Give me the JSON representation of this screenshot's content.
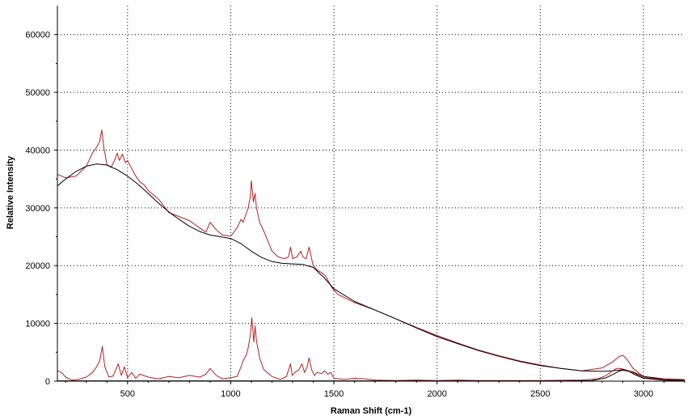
{
  "chart_data": {
    "type": "line",
    "title": "",
    "xlabel": "Raman Shift (cm-1)",
    "ylabel": "Relative Intensity",
    "xlim": [
      160,
      3200
    ],
    "ylim": [
      0,
      65000
    ],
    "x_ticks": [
      500,
      1000,
      1500,
      2000,
      2500,
      3000
    ],
    "y_ticks": [
      0,
      10000,
      20000,
      30000,
      40000,
      50000,
      60000
    ],
    "x_tick_labels": [
      "500",
      "1000",
      "1500",
      "2000",
      "2500",
      "3000"
    ],
    "y_tick_labels": [
      "0",
      "10000",
      "20000",
      "30000",
      "40000",
      "50000",
      "60000"
    ],
    "grid": true,
    "grid_style": "dotted",
    "series": [
      {
        "color": "#b22222",
        "x": [
          160,
          200,
          250,
          300,
          330,
          350,
          365,
          375,
          385,
          400,
          420,
          440,
          450,
          460,
          475,
          490,
          500,
          520,
          540,
          560,
          580,
          600,
          650,
          700,
          750,
          800,
          850,
          880,
          900,
          930,
          960,
          1000,
          1030,
          1050,
          1060,
          1075,
          1085,
          1095,
          1100,
          1110,
          1118,
          1125,
          1140,
          1160,
          1200,
          1230,
          1260,
          1280,
          1290,
          1300,
          1320,
          1340,
          1350,
          1365,
          1380,
          1390,
          1400,
          1420,
          1440,
          1460,
          1490,
          1520,
          1600,
          1700,
          1800,
          1900,
          2000,
          2100,
          2200,
          2300,
          2400,
          2500,
          2600,
          2700,
          2800,
          2850,
          2880,
          2900,
          2920,
          2950,
          3000,
          3100,
          3200
        ],
        "y": [
          35800,
          35200,
          35500,
          37200,
          39500,
          40500,
          41500,
          43500,
          40500,
          37500,
          37000,
          38500,
          39500,
          38200,
          39300,
          37800,
          38200,
          36800,
          35500,
          34500,
          34000,
          33000,
          31500,
          29200,
          28500,
          27800,
          26500,
          25800,
          27500,
          26200,
          25300,
          25100,
          26500,
          28000,
          27500,
          29000,
          30000,
          32000,
          34700,
          31000,
          32500,
          30000,
          27500,
          26000,
          22500,
          21500,
          21200,
          21500,
          23200,
          21200,
          21500,
          22500,
          21500,
          21200,
          23200,
          21500,
          20000,
          19200,
          18800,
          18200,
          16200,
          15000,
          13600,
          12300,
          10800,
          9300,
          7900,
          6600,
          5400,
          4400,
          3500,
          2800,
          2200,
          1800,
          2300,
          3300,
          4200,
          4500,
          3800,
          2200,
          800,
          400,
          300
        ]
      },
      {
        "color": "#000000",
        "x": [
          160,
          200,
          250,
          300,
          350,
          400,
          450,
          500,
          550,
          600,
          650,
          700,
          750,
          800,
          850,
          900,
          950,
          1000,
          1050,
          1100,
          1150,
          1200,
          1250,
          1300,
          1350,
          1400,
          1450,
          1500,
          1600,
          1700,
          1800,
          1900,
          2000,
          2100,
          2200,
          2300,
          2400,
          2500,
          2600,
          2700,
          2800,
          2850,
          2900,
          2950,
          3000,
          3100,
          3200
        ],
        "y": [
          33800,
          35000,
          36300,
          37200,
          37600,
          37400,
          36600,
          35500,
          34100,
          32500,
          30800,
          29300,
          28000,
          26800,
          25900,
          25300,
          25000,
          24700,
          23800,
          22500,
          21400,
          20700,
          20400,
          20300,
          20200,
          19700,
          18000,
          16000,
          13800,
          12300,
          10800,
          9200,
          7700,
          6500,
          5300,
          4300,
          3400,
          2700,
          2200,
          1800,
          1700,
          1800,
          2000,
          1600,
          800,
          350,
          200
        ]
      },
      {
        "color": "#b22222",
        "x": [
          160,
          180,
          200,
          230,
          260,
          300,
          330,
          350,
          365,
          378,
          390,
          410,
          430,
          445,
          455,
          470,
          485,
          500,
          520,
          540,
          560,
          600,
          650,
          700,
          750,
          800,
          850,
          880,
          900,
          930,
          960,
          1000,
          1030,
          1050,
          1060,
          1075,
          1085,
          1095,
          1102,
          1112,
          1118,
          1125,
          1140,
          1160,
          1200,
          1240,
          1270,
          1290,
          1298,
          1310,
          1330,
          1345,
          1358,
          1370,
          1380,
          1392,
          1405,
          1420,
          1440,
          1455,
          1470,
          1485,
          1500,
          1550,
          1600,
          1650,
          1700,
          1800,
          1900,
          2000,
          2100,
          2200,
          2300,
          2400,
          2500,
          2600,
          2700,
          2780,
          2820,
          2850,
          2870,
          2885,
          2900,
          2920,
          2950,
          2980,
          3000,
          3100,
          3200
        ],
        "y": [
          1800,
          1500,
          700,
          200,
          300,
          700,
          1500,
          2500,
          3500,
          6000,
          2500,
          700,
          900,
          2200,
          3000,
          1000,
          2500,
          600,
          1500,
          500,
          1200,
          700,
          400,
          800,
          600,
          1000,
          700,
          1200,
          2200,
          1000,
          400,
          600,
          800,
          2500,
          3500,
          4500,
          5800,
          8000,
          11000,
          6800,
          9600,
          7000,
          4000,
          2000,
          800,
          300,
          800,
          3000,
          1000,
          1500,
          2000,
          3000,
          1500,
          2500,
          4000,
          2000,
          1000,
          1500,
          1300,
          1800,
          1200,
          1500,
          500,
          300,
          500,
          400,
          200,
          100,
          200,
          100,
          200,
          100,
          100,
          100,
          100,
          150,
          200,
          400,
          1000,
          1800,
          2200,
          2200,
          2100,
          1900,
          1500,
          900,
          600,
          300,
          200
        ]
      },
      {
        "color": "#000000",
        "x": [
          160,
          250,
          400,
          600,
          800,
          1000,
          1200,
          1400,
          1600,
          1800,
          2000,
          2200,
          2400,
          2600,
          2750,
          2820,
          2860,
          2880,
          2900,
          2930,
          2960,
          3000,
          3100,
          3200
        ],
        "y": [
          60,
          60,
          60,
          60,
          60,
          60,
          60,
          60,
          60,
          60,
          60,
          60,
          60,
          60,
          100,
          600,
          1300,
          1700,
          1900,
          1700,
          1100,
          500,
          150,
          80
        ]
      }
    ]
  }
}
